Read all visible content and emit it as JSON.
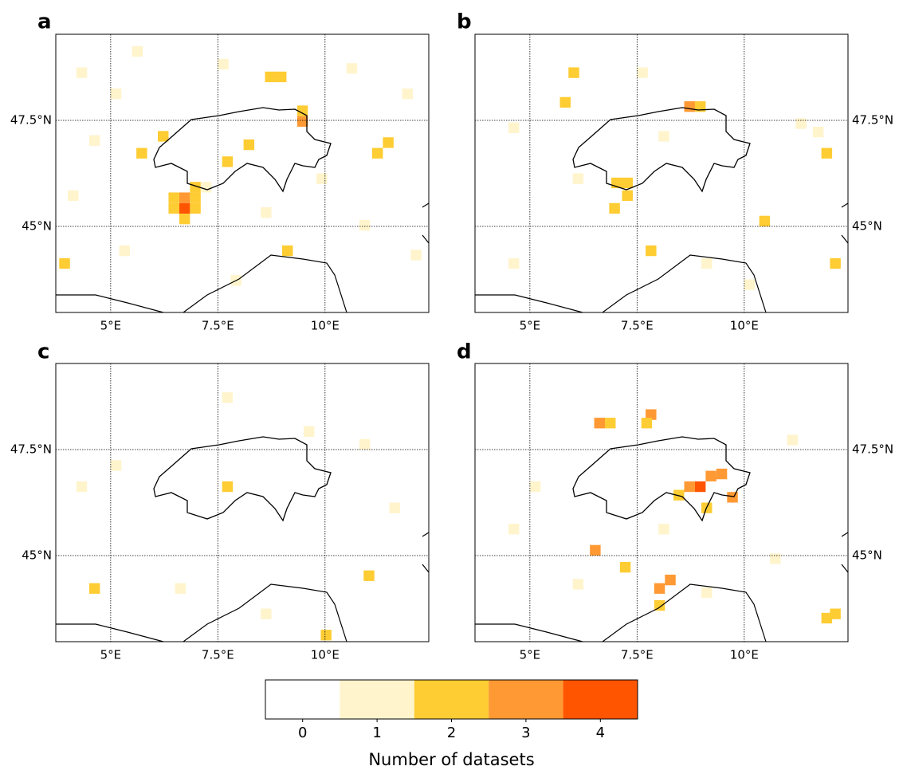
{
  "chart_data": {
    "type": "map",
    "xlim": [
      3.72,
      12.42
    ],
    "ylim": [
      42.97,
      49.53
    ],
    "xticks": [
      {
        "value": 5,
        "label": "5°E"
      },
      {
        "value": 7.5,
        "label": "7.5°E"
      },
      {
        "value": 10,
        "label": "10°E"
      }
    ],
    "yticks": [
      {
        "value": 45,
        "label": "45°N"
      },
      {
        "value": 47.5,
        "label": "47.5°N"
      }
    ],
    "panels": [
      {
        "label": "a",
        "cells": [
          [
            6.6,
            45.3,
            4
          ],
          [
            6.6,
            45.55,
            3
          ],
          [
            6.35,
            45.3,
            2
          ],
          [
            6.35,
            45.55,
            2
          ],
          [
            6.85,
            45.55,
            2
          ],
          [
            6.85,
            45.3,
            2
          ],
          [
            6.6,
            45.05,
            2
          ],
          [
            6.85,
            45.8,
            2
          ],
          [
            7.1,
            45.8,
            1
          ],
          [
            9.35,
            47.35,
            3
          ],
          [
            9.35,
            47.6,
            2
          ],
          [
            8.6,
            48.4,
            2
          ],
          [
            8.85,
            48.4,
            2
          ],
          [
            11.1,
            46.6,
            2
          ],
          [
            11.35,
            46.85,
            2
          ],
          [
            8.1,
            46.8,
            2
          ],
          [
            7.6,
            46.4,
            2
          ],
          [
            5.6,
            46.6,
            2
          ],
          [
            6.1,
            47.0,
            2
          ],
          [
            3.8,
            44.0,
            2
          ],
          [
            9.0,
            44.3,
            2
          ],
          [
            4.5,
            46.9,
            1
          ],
          [
            4.2,
            48.5,
            1
          ],
          [
            5.0,
            48.0,
            1
          ],
          [
            7.5,
            48.7,
            1
          ],
          [
            10.5,
            48.6,
            1
          ],
          [
            11.8,
            48.0,
            1
          ],
          [
            4.0,
            45.6,
            1
          ],
          [
            5.2,
            44.3,
            1
          ],
          [
            7.8,
            43.6,
            1
          ],
          [
            10.8,
            44.9,
            1
          ],
          [
            8.5,
            45.2,
            1
          ],
          [
            12.0,
            44.2,
            1
          ],
          [
            5.5,
            49.0,
            1
          ],
          [
            9.8,
            46.0,
            1
          ]
        ]
      },
      {
        "label": "b",
        "cells": [
          [
            8.6,
            47.7,
            3
          ],
          [
            8.85,
            47.7,
            2
          ],
          [
            6.9,
            45.9,
            2
          ],
          [
            7.15,
            45.9,
            2
          ],
          [
            7.15,
            45.6,
            2
          ],
          [
            6.85,
            45.3,
            2
          ],
          [
            10.35,
            45.0,
            2
          ],
          [
            5.7,
            47.8,
            2
          ],
          [
            5.9,
            48.5,
            2
          ],
          [
            7.7,
            44.3,
            2
          ],
          [
            12.0,
            44.0,
            2
          ],
          [
            11.8,
            46.6,
            2
          ],
          [
            11.2,
            47.3,
            1
          ],
          [
            4.5,
            47.2,
            1
          ],
          [
            8.0,
            47.0,
            1
          ],
          [
            6.0,
            46.0,
            1
          ],
          [
            9.0,
            44.0,
            1
          ],
          [
            10.0,
            43.5,
            1
          ],
          [
            4.5,
            44.0,
            1
          ],
          [
            7.5,
            48.5,
            1
          ],
          [
            11.6,
            47.1,
            1
          ]
        ]
      },
      {
        "label": "c",
        "cells": [
          [
            7.6,
            46.5,
            2
          ],
          [
            9.9,
            43.0,
            2
          ],
          [
            4.5,
            44.1,
            2
          ],
          [
            10.9,
            44.4,
            2
          ],
          [
            5.0,
            47.0,
            1
          ],
          [
            7.6,
            48.6,
            1
          ],
          [
            4.2,
            46.5,
            1
          ],
          [
            9.5,
            47.8,
            1
          ],
          [
            11.5,
            46.0,
            1
          ],
          [
            6.5,
            44.1,
            1
          ],
          [
            8.5,
            43.5,
            1
          ],
          [
            10.8,
            47.5,
            1
          ]
        ]
      },
      {
        "label": "d",
        "cells": [
          [
            8.85,
            46.5,
            4
          ],
          [
            8.6,
            46.5,
            3
          ],
          [
            9.1,
            46.75,
            3
          ],
          [
            9.35,
            46.8,
            3
          ],
          [
            9.6,
            46.25,
            3
          ],
          [
            7.7,
            48.2,
            3
          ],
          [
            6.5,
            48.0,
            3
          ],
          [
            7.9,
            44.1,
            3
          ],
          [
            8.15,
            44.3,
            3
          ],
          [
            6.4,
            45.0,
            3
          ],
          [
            8.35,
            46.3,
            2
          ],
          [
            9.0,
            46.0,
            2
          ],
          [
            7.6,
            48.0,
            2
          ],
          [
            6.75,
            48.0,
            2
          ],
          [
            7.9,
            43.7,
            2
          ],
          [
            7.1,
            44.6,
            2
          ],
          [
            11.8,
            43.4,
            2
          ],
          [
            12.0,
            43.5,
            2
          ],
          [
            8.0,
            45.5,
            1
          ],
          [
            6.0,
            44.2,
            1
          ],
          [
            10.6,
            44.8,
            1
          ],
          [
            9.0,
            44.0,
            1
          ],
          [
            5.0,
            46.5,
            1
          ],
          [
            11.0,
            47.6,
            1
          ],
          [
            4.5,
            45.5,
            1
          ]
        ]
      }
    ],
    "colorbar": {
      "label": "Number of datasets",
      "ticks": [
        0,
        1,
        2,
        3,
        4
      ],
      "colors": [
        "#ffffff",
        "#fff4cc",
        "#fecc33",
        "#ff9933",
        "#ff5500"
      ]
    }
  }
}
